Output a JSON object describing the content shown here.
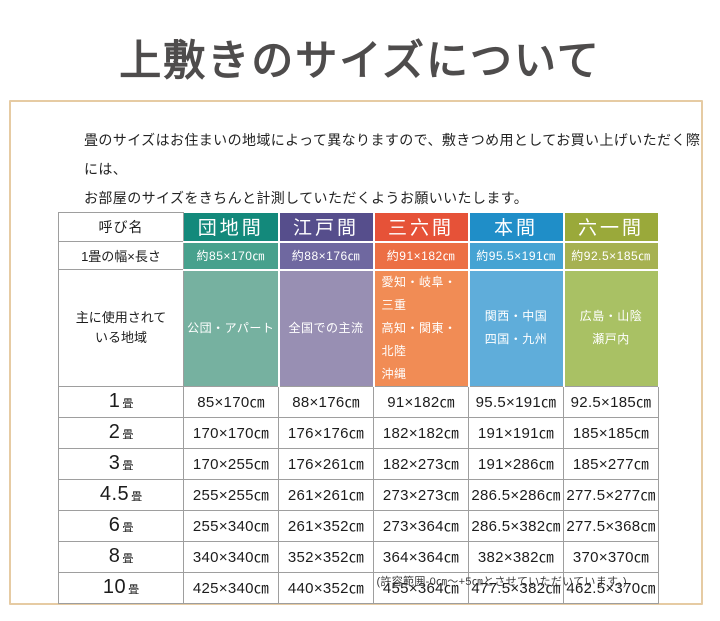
{
  "title": "上敷きのサイズについて",
  "intro": {
    "line1": "畳のサイズはお住まいの地域によって異なりますので、敷きつめ用としてお買い上げいただく際には、",
    "line2": "お部屋のサイズをきちんと計測していただくようお願いいたします。"
  },
  "table": {
    "name_header": "呼び名",
    "size_row_label": "1畳の幅×長さ",
    "region_label_lines": [
      "主に使用されて",
      "いる地域"
    ],
    "unit": "畳",
    "columns": [
      {
        "id": "danchima",
        "label": "団地間",
        "size": "約85×170㎝",
        "regions": [
          "公団・アパート"
        ],
        "region_align": "center",
        "colors": {
          "header": "#13897b",
          "mid": "#47a18d",
          "light": "#76b1a0"
        }
      },
      {
        "id": "edoma",
        "label": "江戸間",
        "size": "約88×176㎝",
        "regions": [
          "全国での主流"
        ],
        "region_align": "center",
        "colors": {
          "header": "#564e8c",
          "mid": "#6f68a0",
          "light": "#988fb3"
        }
      },
      {
        "id": "sanrokuma",
        "label": "三六間",
        "size": "約91×182㎝",
        "regions": [
          "愛知・岐阜・三重",
          "高知・関東・北陸",
          "沖縄"
        ],
        "region_align": "left",
        "colors": {
          "header": "#e65238",
          "mid": "#ec6f44",
          "light": "#f18c55"
        }
      },
      {
        "id": "honma",
        "label": "本間",
        "size": "約95.5×191㎝",
        "regions": [
          "関西・中国",
          "四国・九州"
        ],
        "region_align": "center",
        "colors": {
          "header": "#1f8ec8",
          "mid": "#45a3d3",
          "light": "#5fadda"
        }
      },
      {
        "id": "rokuichima",
        "label": "六一間",
        "size": "約92.5×185㎝",
        "regions": [
          "広島・山陰",
          "瀬戸内"
        ],
        "region_align": "center",
        "colors": {
          "header": "#9aa93a",
          "mid": "#a6b151",
          "light": "#a9c164"
        }
      }
    ],
    "rows": [
      {
        "num": "1",
        "values": [
          "85×170㎝",
          "88×176㎝",
          "91×182㎝",
          "95.5×191㎝",
          "92.5×185㎝"
        ]
      },
      {
        "num": "2",
        "values": [
          "170×170㎝",
          "176×176㎝",
          "182×182㎝",
          "191×191㎝",
          "185×185㎝"
        ]
      },
      {
        "num": "3",
        "values": [
          "170×255㎝",
          "176×261㎝",
          "182×273㎝",
          "191×286㎝",
          "185×277㎝"
        ]
      },
      {
        "num": "4.5",
        "values": [
          "255×255㎝",
          "261×261㎝",
          "273×273㎝",
          "286.5×286㎝",
          "277.5×277㎝"
        ]
      },
      {
        "num": "6",
        "values": [
          "255×340㎝",
          "261×352㎝",
          "273×364㎝",
          "286.5×382㎝",
          "277.5×368㎝"
        ]
      },
      {
        "num": "8",
        "values": [
          "340×340㎝",
          "352×352㎝",
          "364×364㎝",
          "382×382㎝",
          "370×370㎝"
        ]
      },
      {
        "num": "10",
        "values": [
          "425×340㎝",
          "440×352㎝",
          "455×364㎝",
          "477.5×382㎝",
          "462.5×370㎝"
        ]
      }
    ]
  },
  "footnote": "(許容範囲-0㎝〜+5㎝とさせていただいています。)"
}
